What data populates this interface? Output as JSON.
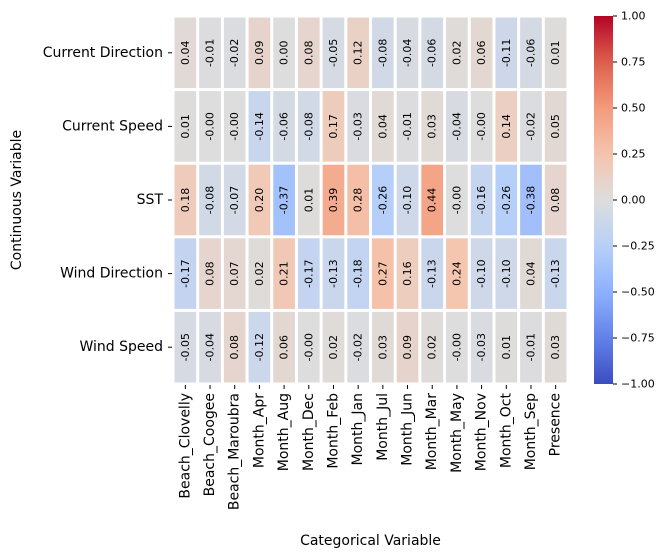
{
  "chart_data": {
    "type": "heatmap",
    "title": "",
    "xlabel": "Categorical Variable",
    "ylabel": "Continuous Variable",
    "x_categories": [
      "Beach_Clovelly",
      "Beach_Coogee",
      "Beach_Maroubra",
      "Month_Apr",
      "Month_Aug",
      "Month_Dec",
      "Month_Feb",
      "Month_Jan",
      "Month_Jul",
      "Month_Jun",
      "Month_Mar",
      "Month_May",
      "Month_Nov",
      "Month_Oct",
      "Month_Sep",
      "Presence"
    ],
    "y_categories": [
      "Current Direction",
      "Current Speed",
      "SST",
      "Wind Direction",
      "Wind Speed"
    ],
    "values": [
      [
        0.04,
        -0.01,
        -0.02,
        0.09,
        0.0,
        0.08,
        -0.05,
        0.12,
        -0.08,
        -0.04,
        -0.06,
        0.02,
        0.06,
        -0.11,
        -0.06,
        0.01
      ],
      [
        0.01,
        -0.0,
        -0.0,
        -0.14,
        -0.06,
        -0.08,
        0.17,
        -0.03,
        0.04,
        -0.01,
        0.03,
        -0.04,
        -0.0,
        0.14,
        -0.02,
        0.05
      ],
      [
        0.18,
        -0.08,
        -0.07,
        0.2,
        -0.37,
        0.01,
        0.39,
        0.28,
        -0.26,
        -0.1,
        0.44,
        -0.0,
        -0.16,
        -0.26,
        -0.38,
        0.08
      ],
      [
        -0.17,
        0.08,
        0.07,
        0.02,
        0.21,
        -0.17,
        -0.13,
        -0.18,
        0.27,
        0.16,
        -0.13,
        0.24,
        -0.1,
        -0.1,
        0.04,
        -0.13
      ],
      [
        -0.05,
        -0.04,
        0.08,
        -0.12,
        0.06,
        -0.0,
        0.02,
        -0.02,
        0.03,
        0.09,
        0.02,
        -0.0,
        -0.03,
        0.01,
        -0.01,
        0.03
      ]
    ],
    "value_labels": [
      [
        "0.04",
        "-0.01",
        "-0.02",
        "0.09",
        "0.00",
        "0.08",
        "-0.05",
        "0.12",
        "-0.08",
        "-0.04",
        "-0.06",
        "0.02",
        "0.06",
        "-0.11",
        "-0.06",
        "0.01"
      ],
      [
        "0.01",
        "-0.00",
        "-0.00",
        "-0.14",
        "-0.06",
        "-0.08",
        "0.17",
        "-0.03",
        "0.04",
        "-0.01",
        "0.03",
        "-0.04",
        "-0.00",
        "0.14",
        "-0.02",
        "0.05"
      ],
      [
        "0.18",
        "-0.08",
        "-0.07",
        "0.20",
        "-0.37",
        "0.01",
        "0.39",
        "0.28",
        "-0.26",
        "-0.10",
        "0.44",
        "-0.00",
        "-0.16",
        "-0.26",
        "-0.38",
        "0.08"
      ],
      [
        "-0.17",
        "0.08",
        "0.07",
        "0.02",
        "0.21",
        "-0.17",
        "-0.13",
        "-0.18",
        "0.27",
        "0.16",
        "-0.13",
        "0.24",
        "-0.10",
        "-0.10",
        "0.04",
        "-0.13"
      ],
      [
        "-0.05",
        "-0.04",
        "0.08",
        "-0.12",
        "0.06",
        "-0.00",
        "0.02",
        "-0.02",
        "0.03",
        "0.09",
        "0.02",
        "-0.00",
        "-0.03",
        "0.01",
        "-0.01",
        "0.03"
      ]
    ],
    "colormap": "coolwarm",
    "vmin": -1.0,
    "vmax": 1.0,
    "colorbar_ticks": [
      1.0,
      0.75,
      0.5,
      0.25,
      0.0,
      -0.25,
      -0.5,
      -0.75,
      -1.0
    ],
    "colorbar_tick_labels": [
      "1.00",
      "0.75",
      "0.50",
      "0.25",
      "0.00",
      "−0.25",
      "−0.50",
      "−0.75",
      "−1.00"
    ],
    "cell_border_color": "#ffffff",
    "legend": "colorbar-right"
  }
}
